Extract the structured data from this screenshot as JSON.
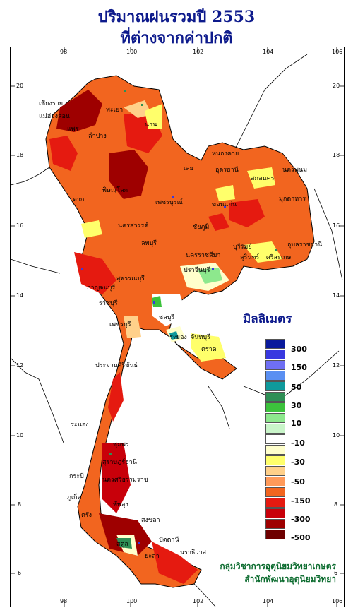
{
  "title": {
    "line1": "ปริมาณฝนรวมปี  2553",
    "line2": "ที่ต่างจากค่าปกติ"
  },
  "axes": {
    "lon_ticks": [
      "98",
      "100",
      "102",
      "104",
      "106"
    ],
    "lat_ticks": [
      "20",
      "18",
      "16",
      "14",
      "12",
      "10",
      "8",
      "6"
    ]
  },
  "legend": {
    "unit": "มิลลิเมตร",
    "labels": [
      "300",
      "150",
      "50",
      "30",
      "10",
      "-10",
      "-30",
      "-50",
      "-150",
      "-300",
      "-500"
    ],
    "colors": [
      "#0a1a9c",
      "#3838e0",
      "#6f6ff4",
      "#5a8ff2",
      "#0f9a9c",
      "#2e8f55",
      "#3cc23c",
      "#8de88d",
      "#c9f5c9",
      "#ffffff",
      "#ffffcc",
      "#ffff6b",
      "#ffd08a",
      "#ff9a5a",
      "#f2651f",
      "#e51a10",
      "#c8000a",
      "#9e0000",
      "#6e0000"
    ]
  },
  "places": [
    "เชียงราย",
    "พะเยา",
    "น่าน",
    "ลำปาง",
    "แพร่",
    "หนองคาย",
    "อุดรธานี",
    "สกลนคร",
    "นครพนม",
    "เลย",
    "มุกดาหาร",
    "ขอนแก่น",
    "พิษณุโลก",
    "เพชรบูรณ์",
    "นครสวรรค์",
    "ชัยภูมิ",
    "นครราชสีมา",
    "สุรินทร์",
    "อุบลราชธานี",
    "ศรีสะเกษ",
    "กาญจนบุรี",
    "สุพรรณบุรี",
    "ชลบุรี",
    "ระยอง",
    "จันทบุรี",
    "ตราด",
    "ประจวบคีรีขันธ์",
    "ชุมพร",
    "ระนอง",
    "สุราษฎร์ธานี",
    "นครศรีธรรมราช",
    "กระบี่",
    "ภูเก็ต",
    "ตรัง",
    "สงขลา",
    "ปัตตานี",
    "นราธิวาส",
    "ยะลา",
    "สตูล",
    "แม่ฮ่องสอน",
    "ตาก",
    "ลพบุรี",
    "ปราจีนบุรี",
    "เพชรบุรี",
    "ราชบุรี",
    "พัทลุง",
    "บุรีรัมย์"
  ],
  "credit": {
    "line1": "กลุ่มวิชาการอุตุนิยมวิทยาเกษตร",
    "line2": "สำนักพัฒนาอุตุนิยมวิทยา"
  }
}
